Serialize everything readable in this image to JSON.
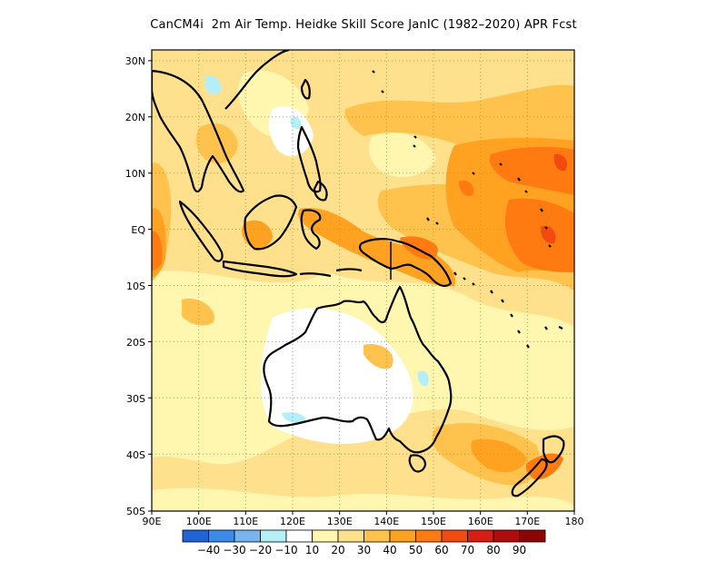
{
  "title": "CanCM4i  2m Air Temp. Heidke Skill Score JanIC (1982–2020) APR Fcst",
  "map": {
    "projection": "lat-lon",
    "lon_range": [
      90,
      180
    ],
    "lat_range": [
      -50,
      32
    ],
    "lon_ticks": [
      "90E",
      "100E",
      "110E",
      "120E",
      "130E",
      "140E",
      "150E",
      "160E",
      "170E",
      "180"
    ],
    "lat_ticks": [
      "30N",
      "20N",
      "10N",
      "EQ",
      "10S",
      "20S",
      "30S",
      "40S",
      "50S"
    ],
    "grid": "dotted"
  },
  "colorbar": {
    "labels": [
      "−40",
      "−30",
      "−20",
      "−10",
      "10",
      "20",
      "30",
      "40",
      "50",
      "60",
      "70",
      "80",
      "90"
    ],
    "colors": [
      "#1f63d6",
      "#3a8ae6",
      "#78b5f0",
      "#b4eef6",
      "#ffffff",
      "#fff6b0",
      "#ffe08c",
      "#ffc24c",
      "#ffa221",
      "#ff7a10",
      "#f34a0f",
      "#d81d12",
      "#b20b0b",
      "#8c0606"
    ]
  }
}
